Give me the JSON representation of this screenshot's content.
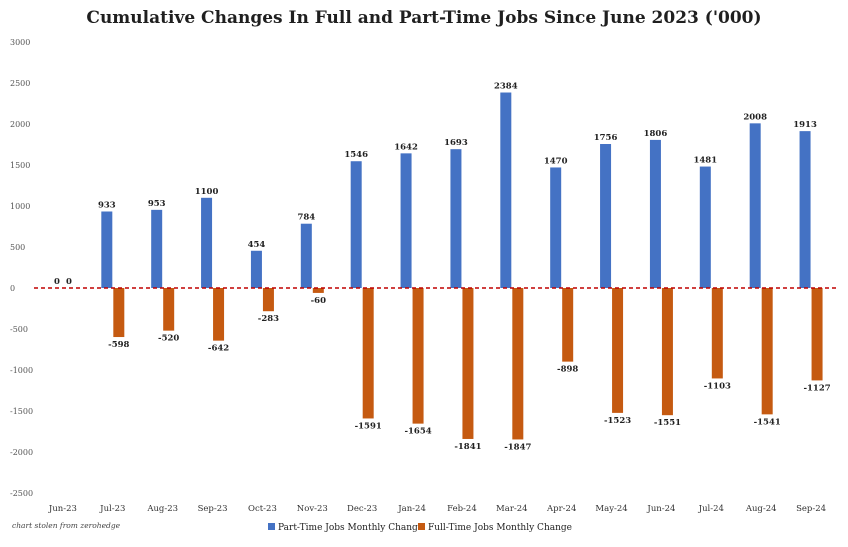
{
  "chart_data": {
    "type": "bar",
    "title": "Cumulative Changes In Full and Part-Time Jobs Since June 2023 ('000)",
    "categories": [
      "Jun-23",
      "Jul-23",
      "Aug-23",
      "Sep-23",
      "Oct-23",
      "Nov-23",
      "Dec-23",
      "Jan-24",
      "Feb-24",
      "Mar-24",
      "Apr-24",
      "May-24",
      "Jun-24",
      "Jul-24",
      "Aug-24",
      "Sep-24"
    ],
    "series": [
      {
        "name": "Part-Time Jobs Monthly Change",
        "color": "#4472C4",
        "values": [
          0,
          933,
          953,
          1100,
          454,
          784,
          1546,
          1642,
          1693,
          2384,
          1470,
          1756,
          1806,
          1481,
          2008,
          1913
        ],
        "labels": [
          "0",
          "933",
          "953",
          "1100",
          "454",
          "784",
          "1546",
          "1642",
          "1693",
          "2384",
          "1470",
          "1756",
          "1806",
          "1481",
          "2008",
          "1913"
        ]
      },
      {
        "name": "Full-Time Jobs Monthly Change",
        "color": "#C55A11",
        "values": [
          0,
          -598,
          -520,
          -642,
          -283,
          -60,
          -1591,
          -1654,
          -1841,
          -1847,
          -898,
          -1523,
          -1551,
          -1103,
          -1541,
          -1127
        ],
        "labels": [
          "0",
          "-598",
          "-520",
          "-642",
          "-283",
          "-60",
          "-1591",
          "-1654",
          "-1841",
          "-1847",
          "-898",
          "-1523",
          "-1551",
          "-1103",
          "-1541",
          "-1127"
        ]
      }
    ],
    "ylim": [
      -2500,
      3000
    ],
    "yticks": [
      3000,
      2500,
      2000,
      1500,
      1000,
      500,
      0,
      -500,
      -1000,
      -1500,
      -2000,
      -2500
    ],
    "zero_line_color": "#C00000",
    "legend_position": "bottom",
    "grid": false
  },
  "source_note": "chart stolen from zerohedge"
}
